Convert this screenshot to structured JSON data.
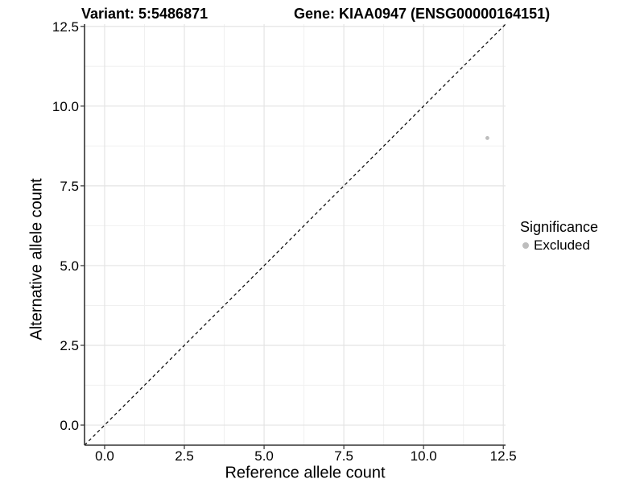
{
  "header": {
    "variant_title": "Variant: 5:5486871",
    "gene_title": "Gene: KIAA0947 (ENSG00000164151)"
  },
  "chart_data": {
    "type": "scatter",
    "title": "Variant: 5:5486871    Gene: KIAA0947 (ENSG00000164151)",
    "x_axis": {
      "title": "Reference allele count",
      "range": [
        -0.63,
        12.57
      ],
      "tick_values": [
        0,
        2.5,
        5,
        7.5,
        10,
        12.5
      ],
      "tick_labels": [
        "0.0",
        "2.5",
        "5.0",
        "7.5",
        "10.0",
        "12.5"
      ],
      "minor_tick_values": [
        1.25,
        3.75,
        6.25,
        8.75,
        11.25
      ]
    },
    "y_axis": {
      "title": "Alternative allele count",
      "range": [
        -0.63,
        12.57
      ],
      "tick_values": [
        0,
        2.5,
        5,
        7.5,
        10,
        12.5
      ],
      "tick_labels": [
        "0.0",
        "2.5",
        "5.0",
        "7.5",
        "10.0",
        "12.5"
      ],
      "minor_tick_values": [
        1.25,
        3.75,
        6.25,
        8.75,
        11.25
      ]
    },
    "series": [
      {
        "name": "Excluded",
        "points": [
          {
            "x": 12,
            "y": 9
          }
        ],
        "color": "#bdbdbd"
      }
    ],
    "reference_line": {
      "type": "identity",
      "style": "dashed",
      "color": "#000000",
      "from": [
        -0.63,
        -0.63
      ],
      "to": [
        12.57,
        12.57
      ]
    },
    "legend": {
      "title": "Significance",
      "position": "right",
      "entries": [
        {
          "label": "Excluded",
          "color": "#bdbdbd"
        }
      ]
    },
    "grid": true,
    "colors": {
      "background": "#ffffff",
      "grid_major": "#e4e4e4",
      "grid_minor": "#f0f0f0",
      "axis": "#333333",
      "tick_text": "#000000"
    }
  }
}
